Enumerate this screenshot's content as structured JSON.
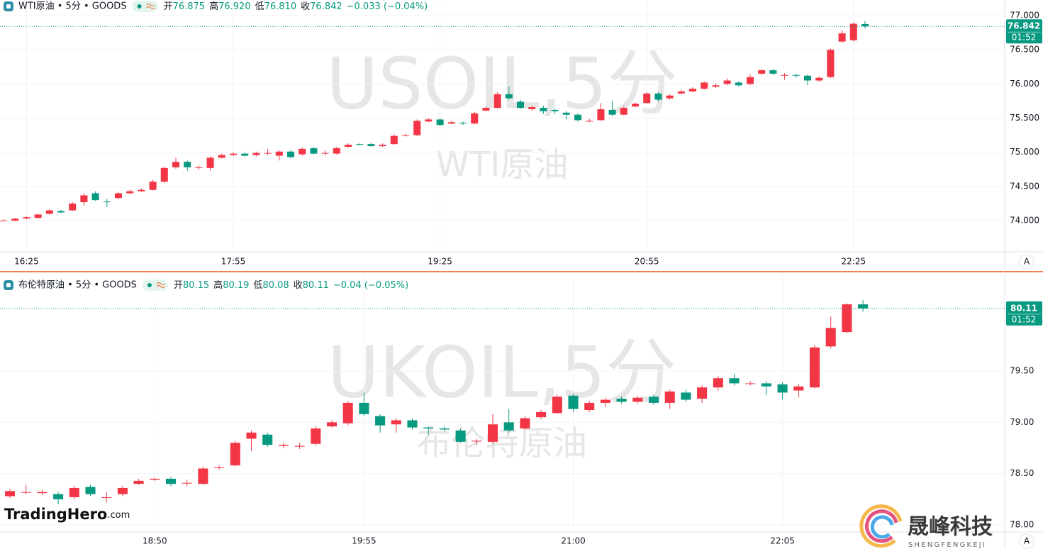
{
  "chart_data": [
    {
      "type": "candlestick",
      "title": "WTI原油 • 5分 • GOODS",
      "legend": [
        {
          "label": "开",
          "value": "76.875"
        },
        {
          "label": "高",
          "value": "76.920"
        },
        {
          "label": "低",
          "value": "76.810"
        },
        {
          "label": "收",
          "value": "76.842"
        }
      ],
      "change": "−0.033 (−0.04%)",
      "countdown": "01:52",
      "watermark": "USOIL,5分",
      "watermark_subtitle": "WTI原油",
      "scale_button": "A",
      "up_color": "#f23645",
      "down_color": "#089981",
      "ylim": [
        73.544,
        77.228
      ],
      "yticks": [
        {
          "value": 74,
          "label": "74.000"
        },
        {
          "value": 74.5,
          "label": "74.500"
        },
        {
          "value": 75,
          "label": "75.000"
        },
        {
          "value": 75.5,
          "label": "75.500"
        },
        {
          "value": 76,
          "label": "76.000"
        },
        {
          "value": 76.5,
          "label": "76.500"
        },
        {
          "value": 77,
          "label": "77.000"
        }
      ],
      "categories": [
        null,
        null,
        "16:25",
        null,
        null,
        null,
        null,
        null,
        null,
        null,
        null,
        null,
        null,
        null,
        null,
        null,
        null,
        null,
        null,
        null,
        "17:55",
        null,
        null,
        null,
        null,
        null,
        null,
        null,
        null,
        null,
        null,
        null,
        null,
        null,
        null,
        null,
        null,
        null,
        "19:25",
        null,
        null,
        null,
        null,
        null,
        null,
        null,
        null,
        null,
        null,
        null,
        null,
        null,
        null,
        null,
        null,
        null,
        "20:55",
        null,
        null,
        null,
        null,
        null,
        null,
        null,
        null,
        null,
        null,
        null,
        null,
        null,
        null,
        null,
        null,
        null,
        "22:25",
        null
      ],
      "open": [
        74.0,
        74.0,
        74.03,
        74.04,
        74.1,
        74.14,
        74.15,
        74.27,
        74.4,
        74.28,
        74.33,
        74.4,
        74.43,
        74.45,
        74.57,
        74.78,
        74.86,
        74.78,
        74.77,
        74.92,
        74.96,
        74.98,
        74.96,
        74.99,
        74.95,
        75.01,
        74.97,
        75.06,
        74.99,
        74.98,
        75.08,
        75.12,
        75.12,
        75.09,
        75.12,
        75.25,
        75.25,
        75.45,
        75.48,
        75.42,
        75.43,
        75.42,
        75.61,
        75.65,
        75.85,
        75.74,
        75.63,
        75.65,
        75.62,
        75.58,
        75.55,
        75.46,
        75.47,
        75.62,
        75.55,
        75.67,
        75.72,
        75.86,
        75.79,
        75.86,
        75.89,
        75.93,
        75.96,
        76.0,
        76.02,
        76.0,
        76.15,
        76.2,
        76.13,
        76.13,
        76.12,
        76.05,
        76.1,
        76.62,
        76.64,
        76.875
      ],
      "high": [
        74.02,
        74.04,
        74.06,
        74.1,
        74.17,
        74.16,
        74.27,
        74.4,
        74.43,
        74.32,
        74.42,
        74.45,
        74.47,
        74.6,
        74.79,
        74.92,
        74.88,
        74.81,
        74.94,
        74.98,
        75.0,
        75.0,
        75.01,
        75.05,
        75.03,
        75.03,
        75.07,
        75.08,
        75.03,
        75.08,
        75.13,
        75.13,
        75.14,
        75.13,
        75.26,
        75.27,
        75.48,
        75.5,
        75.5,
        75.46,
        75.45,
        75.59,
        75.67,
        75.88,
        75.96,
        75.77,
        75.68,
        75.68,
        75.64,
        75.6,
        75.57,
        75.49,
        75.72,
        75.75,
        75.67,
        75.73,
        75.88,
        75.88,
        75.85,
        75.91,
        75.95,
        76.04,
        76.01,
        76.08,
        76.04,
        76.14,
        76.22,
        76.22,
        76.16,
        76.15,
        76.14,
        76.11,
        76.52,
        76.79,
        76.9,
        76.92
      ],
      "low": [
        73.99,
        73.99,
        74.02,
        74.03,
        74.09,
        74.11,
        74.14,
        74.22,
        74.29,
        74.2,
        74.32,
        74.39,
        74.42,
        74.44,
        74.55,
        74.76,
        74.73,
        74.74,
        74.73,
        74.91,
        74.95,
        74.94,
        74.94,
        74.96,
        74.88,
        74.91,
        74.95,
        74.97,
        74.95,
        74.97,
        75.07,
        75.1,
        75.08,
        75.08,
        75.11,
        75.23,
        75.24,
        75.44,
        75.38,
        75.41,
        75.4,
        75.41,
        75.6,
        75.64,
        75.77,
        75.63,
        75.61,
        75.56,
        75.56,
        75.48,
        75.45,
        75.44,
        75.46,
        75.53,
        75.54,
        75.66,
        75.71,
        75.74,
        75.77,
        75.85,
        75.88,
        75.92,
        75.94,
        75.98,
        75.96,
        75.98,
        76.13,
        76.13,
        76.06,
        76.09,
        75.98,
        76.03,
        76.09,
        76.6,
        76.62,
        76.81
      ],
      "close": [
        74.0,
        74.03,
        74.05,
        74.09,
        74.15,
        74.12,
        74.25,
        74.37,
        74.3,
        74.27,
        74.4,
        74.43,
        74.45,
        74.57,
        74.77,
        74.86,
        74.78,
        74.78,
        74.92,
        74.96,
        74.98,
        74.95,
        74.99,
        74.99,
        75.01,
        74.93,
        75.05,
        74.98,
        74.99,
        75.06,
        75.11,
        75.11,
        75.09,
        75.11,
        75.24,
        75.25,
        75.46,
        75.48,
        75.4,
        75.44,
        75.42,
        75.57,
        75.65,
        75.85,
        75.79,
        75.65,
        75.66,
        75.6,
        75.6,
        75.55,
        75.47,
        75.46,
        75.63,
        75.55,
        75.65,
        75.71,
        75.86,
        75.77,
        75.83,
        75.89,
        75.93,
        76.02,
        75.98,
        76.05,
        75.98,
        76.1,
        76.2,
        76.15,
        76.13,
        76.12,
        76.05,
        76.09,
        76.5,
        76.74,
        76.88,
        76.842
      ]
    },
    {
      "type": "candlestick",
      "title": "布伦特原油 • 5分 • GOODS",
      "legend": [
        {
          "label": "开",
          "value": "80.15"
        },
        {
          "label": "高",
          "value": "80.19"
        },
        {
          "label": "低",
          "value": "80.08"
        },
        {
          "label": "收",
          "value": "80.11"
        }
      ],
      "change": "−0.04 (−0.05%)",
      "countdown": "01:52",
      "watermark": "UKOIL,5分",
      "watermark_subtitle": "布伦特原油",
      "scale_button": "A",
      "up_color": "#f23645",
      "down_color": "#089981",
      "ylim": [
        77.931,
        80.434
      ],
      "yticks": [
        {
          "value": 78,
          "label": "78.00"
        },
        {
          "value": 78.5,
          "label": "78.50"
        },
        {
          "value": 79,
          "label": "79.00"
        },
        {
          "value": 79.5,
          "label": "79.50"
        }
      ],
      "categories": [
        null,
        null,
        null,
        null,
        null,
        null,
        null,
        null,
        null,
        "18:50",
        null,
        null,
        null,
        null,
        null,
        null,
        null,
        null,
        null,
        null,
        null,
        null,
        "19:55",
        null,
        null,
        null,
        null,
        null,
        null,
        null,
        null,
        null,
        null,
        null,
        null,
        "21:00",
        null,
        null,
        null,
        null,
        null,
        null,
        null,
        null,
        null,
        null,
        null,
        null,
        "22:05",
        null,
        null,
        null,
        null,
        null
      ],
      "open": [
        78.28,
        78.32,
        78.31,
        78.3,
        78.27,
        78.37,
        78.27,
        78.3,
        78.4,
        78.44,
        78.45,
        78.41,
        78.4,
        78.56,
        78.58,
        78.84,
        78.88,
        78.77,
        78.77,
        78.79,
        78.96,
        78.99,
        79.19,
        79.06,
        78.98,
        79.02,
        78.95,
        78.94,
        78.92,
        78.82,
        78.81,
        79.0,
        78.94,
        79.05,
        79.09,
        79.26,
        79.12,
        79.19,
        79.23,
        79.2,
        79.25,
        79.19,
        79.29,
        79.23,
        79.34,
        79.43,
        79.38,
        79.38,
        79.37,
        79.31,
        79.34,
        79.74,
        79.88,
        80.15
      ],
      "high": [
        78.35,
        78.39,
        78.34,
        78.32,
        78.38,
        78.39,
        78.32,
        78.38,
        78.45,
        78.46,
        78.47,
        78.44,
        78.57,
        78.58,
        78.82,
        78.92,
        78.9,
        78.8,
        78.8,
        78.96,
        79.02,
        79.21,
        79.29,
        79.08,
        79.04,
        79.04,
        78.96,
        78.96,
        78.94,
        78.84,
        79.08,
        79.13,
        79.06,
        79.12,
        79.27,
        79.28,
        79.21,
        79.24,
        79.25,
        79.26,
        79.27,
        79.32,
        79.32,
        79.36,
        79.45,
        79.47,
        79.4,
        79.4,
        79.39,
        79.37,
        79.75,
        80.03,
        80.16,
        80.19
      ],
      "low": [
        78.26,
        78.3,
        78.29,
        78.2,
        78.25,
        78.28,
        78.22,
        78.28,
        78.39,
        78.43,
        78.38,
        78.38,
        78.39,
        78.54,
        78.57,
        78.72,
        78.76,
        78.75,
        78.74,
        78.77,
        78.95,
        78.97,
        79.06,
        78.9,
        78.9,
        78.93,
        78.88,
        78.91,
        78.8,
        78.78,
        78.79,
        78.9,
        78.93,
        79.03,
        79.08,
        79.1,
        79.1,
        79.15,
        79.18,
        79.18,
        79.17,
        79.13,
        79.2,
        79.19,
        79.31,
        79.36,
        79.36,
        79.27,
        79.22,
        79.24,
        79.33,
        79.72,
        79.87,
        80.08
      ],
      "close": [
        78.33,
        78.32,
        78.32,
        78.25,
        78.36,
        78.3,
        78.27,
        78.36,
        78.43,
        78.45,
        78.4,
        78.41,
        78.55,
        78.56,
        78.8,
        78.9,
        78.78,
        78.78,
        78.77,
        78.94,
        79.0,
        79.19,
        79.08,
        78.97,
        79.02,
        78.95,
        78.94,
        78.93,
        78.81,
        78.82,
        78.98,
        78.92,
        79.04,
        79.1,
        79.25,
        79.13,
        79.19,
        79.22,
        79.2,
        79.24,
        79.19,
        79.3,
        79.22,
        79.34,
        79.43,
        79.38,
        79.38,
        79.35,
        79.29,
        79.35,
        79.73,
        79.92,
        80.15,
        80.11
      ]
    }
  ],
  "branding": {
    "left_name": "TradingHero",
    "left_suffix": ".com",
    "right_name": "晟峰科技",
    "right_subtitle": "SHENGFENGKEJI"
  }
}
